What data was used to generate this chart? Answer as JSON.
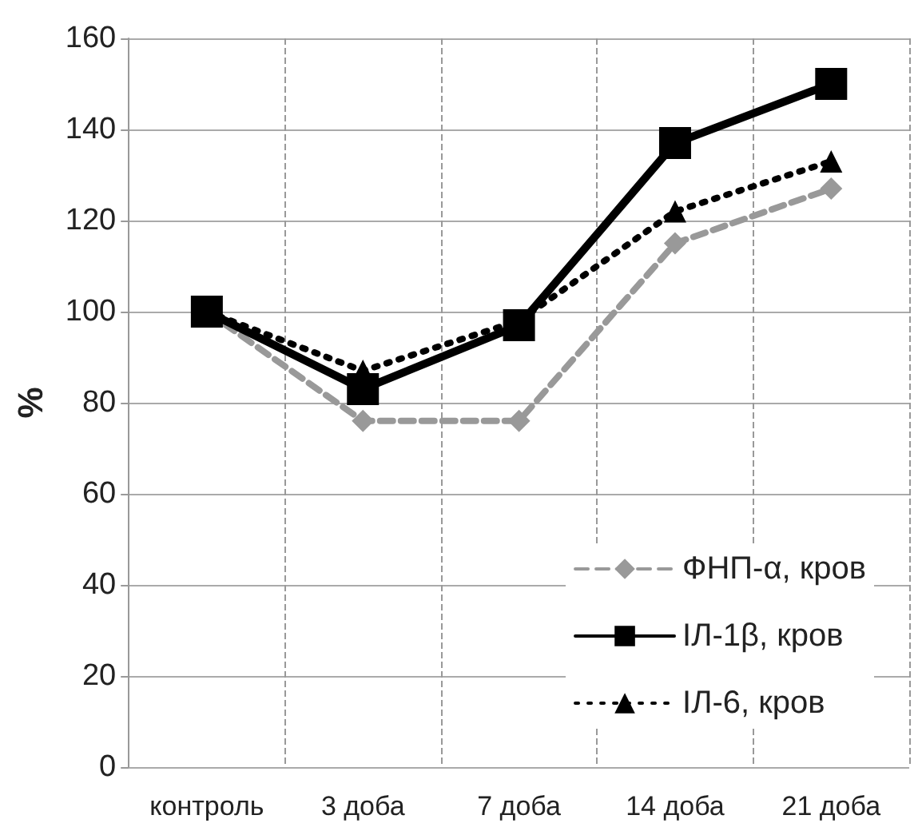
{
  "chart_data": {
    "type": "line",
    "ylabel": "%",
    "categories": [
      "контроль",
      "3 доба",
      "7 доба",
      "14 доба",
      "21 доба"
    ],
    "series": [
      {
        "name": "ФНП-α, кров",
        "color": "#999999",
        "values": [
          100,
          76,
          76,
          115,
          127
        ],
        "marker": "diamond",
        "line_style": "dashed"
      },
      {
        "name": "ІЛ-1β, кров",
        "color": "#000000",
        "values": [
          100,
          83,
          97,
          137,
          150
        ],
        "marker": "square",
        "line_style": "solid"
      },
      {
        "name": "ІЛ-6, кров",
        "color": "#000000",
        "values": [
          100,
          87,
          98,
          122,
          133
        ],
        "marker": "triangle",
        "line_style": "dotted"
      }
    ],
    "ylim": [
      0,
      160
    ],
    "yticks": [
      0,
      20,
      40,
      60,
      80,
      100,
      120,
      140,
      160
    ],
    "grid": true,
    "legend": "bottom right"
  }
}
